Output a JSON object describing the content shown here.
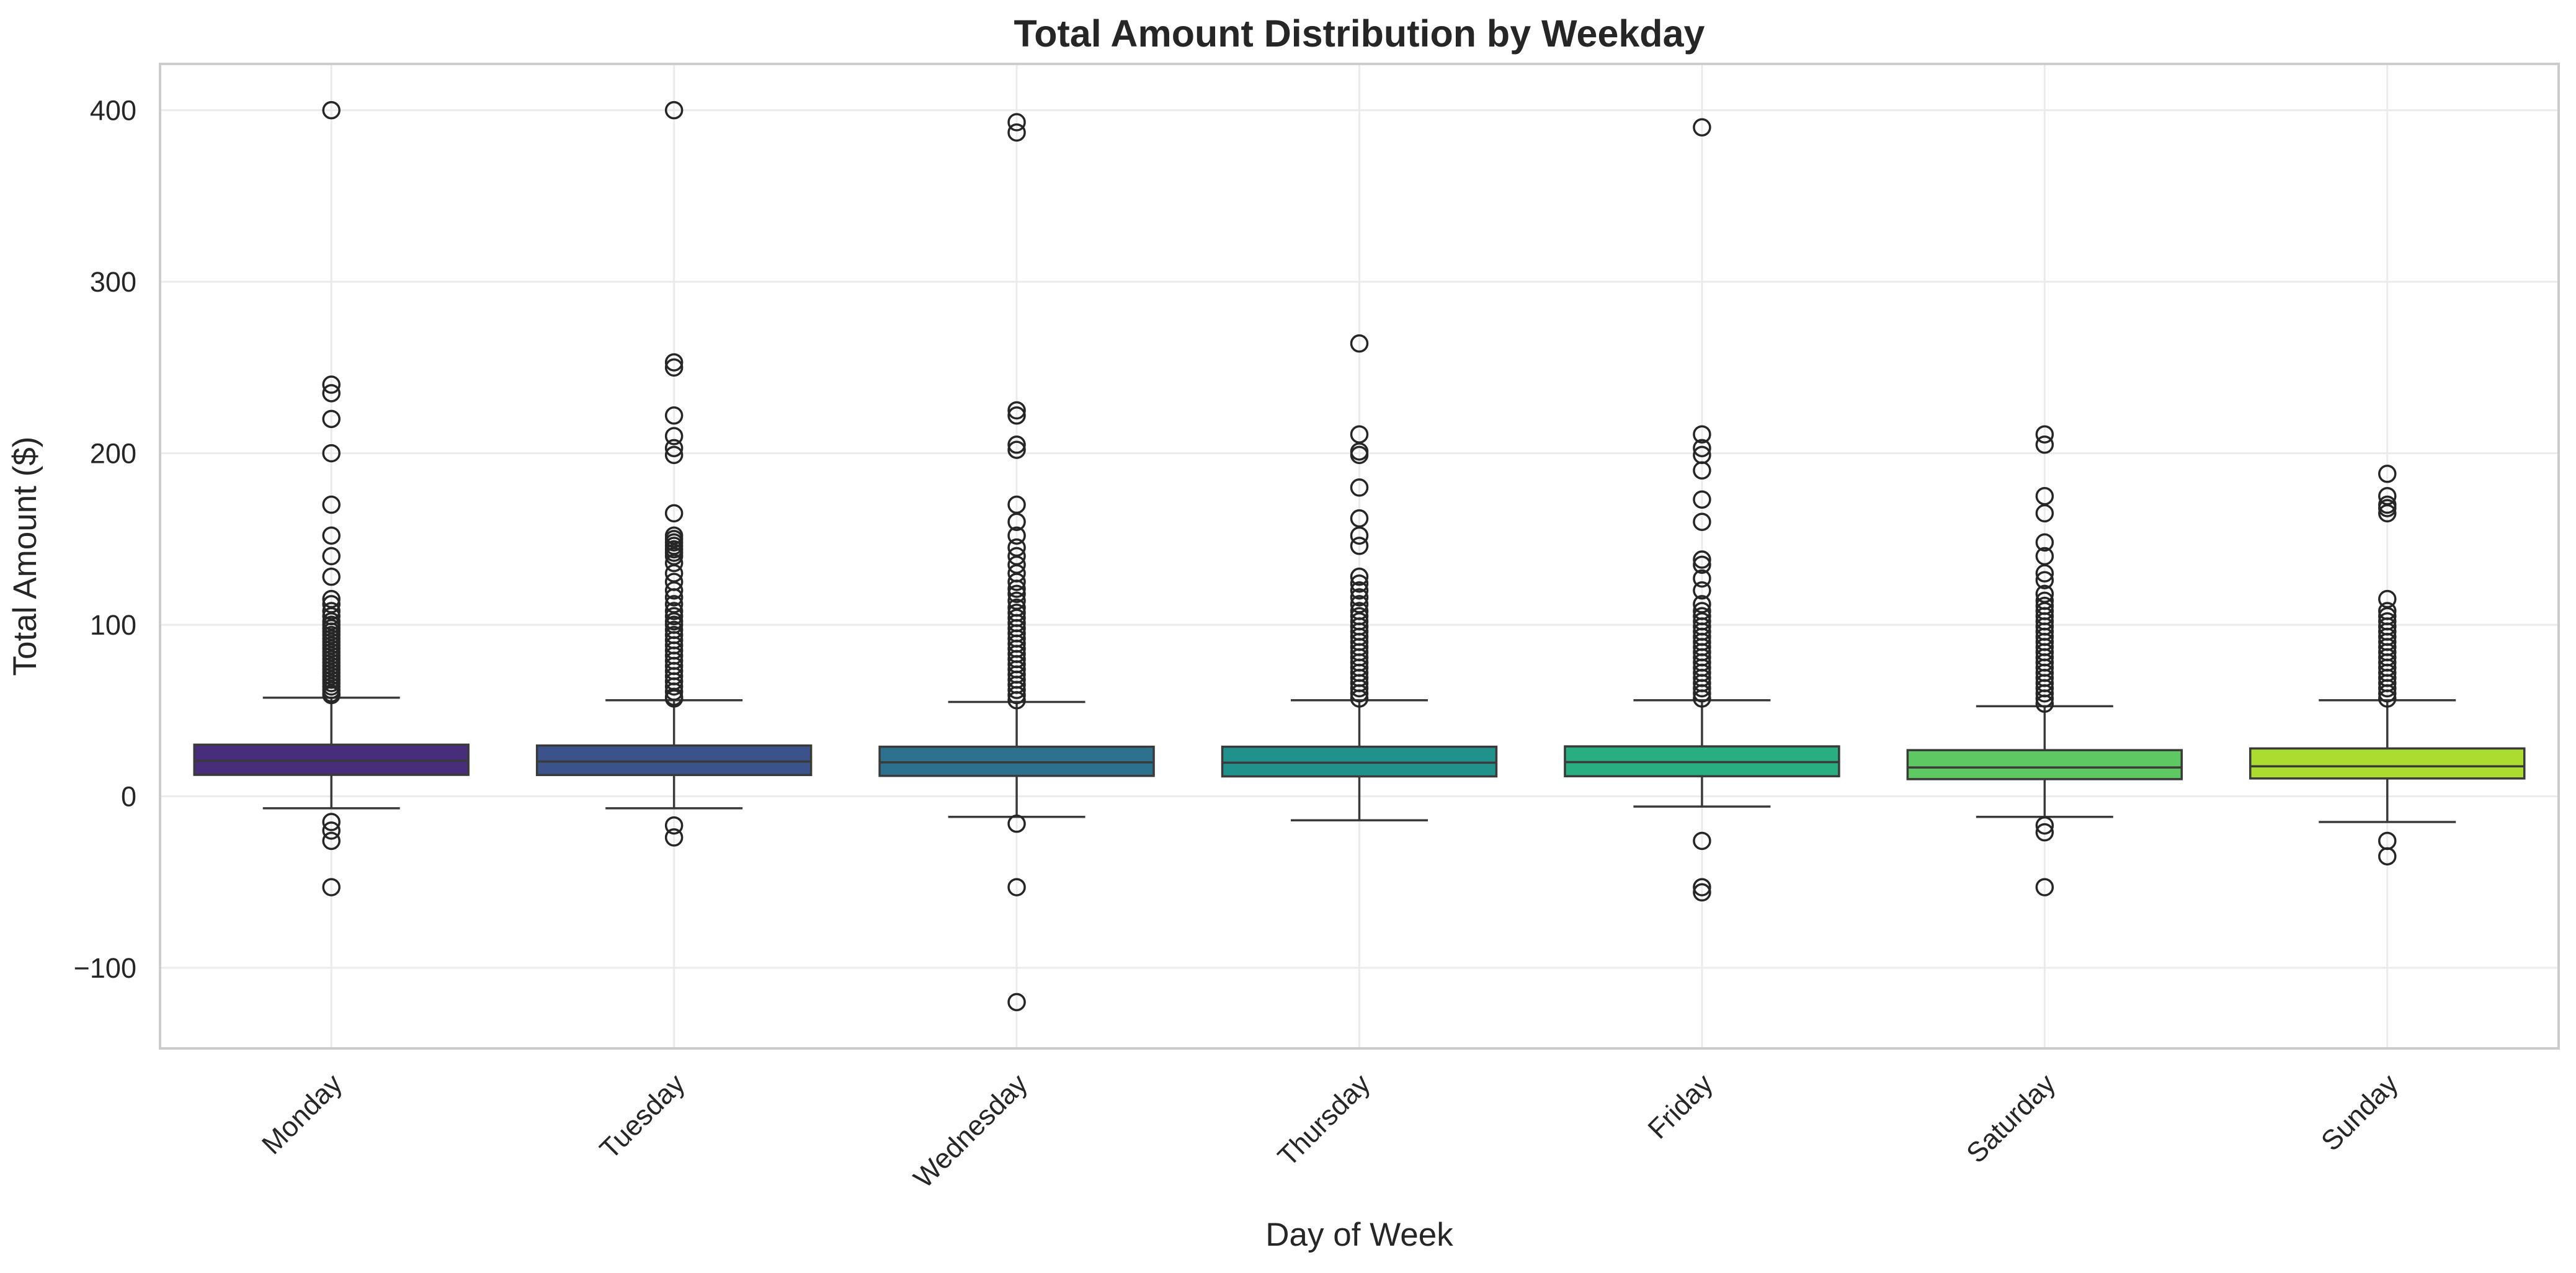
{
  "chart_data": {
    "type": "box",
    "title": "Total Amount Distribution by Weekday",
    "xlabel": "Day of Week",
    "ylabel": "Total Amount ($)",
    "ylim": [
      -147,
      427
    ],
    "yticks": [
      -100,
      0,
      100,
      200,
      300,
      400
    ],
    "ytick_labels": [
      "−100",
      "0",
      "100",
      "200",
      "300",
      "400"
    ],
    "grid": true,
    "categories": [
      "Monday",
      "Tuesday",
      "Wednesday",
      "Thursday",
      "Friday",
      "Saturday",
      "Sunday"
    ],
    "colors": [
      "#472d7b",
      "#3b528b",
      "#2c728e",
      "#21918c",
      "#28ae80",
      "#5ec962",
      "#addc30"
    ],
    "boxes": [
      {
        "q1": 12.5,
        "median": 20.6,
        "q3": 30.1,
        "whisker_low": -7.0,
        "whisker_high": 57.5,
        "fliers": [
          400,
          240,
          235,
          220,
          200,
          170,
          152,
          140,
          128,
          115,
          112,
          108,
          105,
          102,
          100,
          98,
          96,
          94,
          92,
          90,
          88,
          86,
          84,
          82,
          80,
          78,
          76,
          74,
          72,
          70,
          68,
          66,
          64,
          62,
          60,
          59,
          -15,
          -20,
          -26,
          -53
        ]
      },
      {
        "q1": 12.4,
        "median": 20.3,
        "q3": 29.6,
        "whisker_low": -7.0,
        "whisker_high": 56.0,
        "fliers": [
          400,
          253,
          250,
          222,
          210,
          203,
          199,
          165,
          152,
          150,
          148,
          146,
          144,
          142,
          140,
          136,
          130,
          125,
          120,
          116,
          112,
          108,
          105,
          102,
          100,
          97,
          94,
          91,
          88,
          85,
          82,
          79,
          76,
          73,
          70,
          67,
          64,
          61,
          58,
          57,
          -17,
          -24
        ]
      },
      {
        "q1": 11.9,
        "median": 19.8,
        "q3": 28.9,
        "whisker_low": -12.0,
        "whisker_high": 55.0,
        "fliers": [
          393,
          387,
          225,
          222,
          205,
          202,
          170,
          160,
          152,
          145,
          140,
          135,
          130,
          125,
          121,
          118,
          114,
          110,
          107,
          104,
          101,
          98,
          95,
          92,
          89,
          86,
          83,
          80,
          77,
          74,
          71,
          68,
          65,
          62,
          59,
          56,
          -16,
          -53,
          -120
        ]
      },
      {
        "q1": 11.6,
        "median": 19.6,
        "q3": 28.9,
        "whisker_low": -14.0,
        "whisker_high": 56.0,
        "fliers": [
          264,
          211,
          201,
          199,
          180,
          162,
          152,
          146,
          128,
          124,
          120,
          116,
          112,
          108,
          105,
          102,
          99,
          96,
          93,
          90,
          87,
          84,
          81,
          78,
          75,
          72,
          69,
          66,
          63,
          60,
          57
        ]
      },
      {
        "q1": 11.7,
        "median": 19.9,
        "q3": 29.1,
        "whisker_low": -6.0,
        "whisker_high": 56.0,
        "fliers": [
          390,
          211,
          203,
          199,
          190,
          173,
          160,
          138,
          135,
          127,
          120,
          112,
          108,
          105,
          102,
          99,
          96,
          93,
          90,
          87,
          84,
          81,
          78,
          75,
          72,
          69,
          66,
          63,
          60,
          57,
          -26,
          -53,
          -56
        ]
      },
      {
        "q1": 10.0,
        "median": 16.8,
        "q3": 26.9,
        "whisker_low": -12.0,
        "whisker_high": 52.5,
        "fliers": [
          211,
          205,
          175,
          165,
          148,
          140,
          130,
          126,
          118,
          114,
          111,
          108,
          105,
          102,
          99,
          96,
          93,
          90,
          87,
          84,
          81,
          78,
          75,
          72,
          69,
          66,
          63,
          60,
          57,
          54,
          -17,
          -21,
          -53
        ]
      },
      {
        "q1": 10.4,
        "median": 17.5,
        "q3": 27.9,
        "whisker_low": -15.0,
        "whisker_high": 56.0,
        "fliers": [
          188,
          175,
          170,
          168,
          165,
          115,
          108,
          105,
          102,
          99,
          96,
          93,
          90,
          87,
          84,
          81,
          78,
          75,
          72,
          69,
          66,
          63,
          60,
          57,
          -26,
          -35
        ]
      }
    ]
  }
}
